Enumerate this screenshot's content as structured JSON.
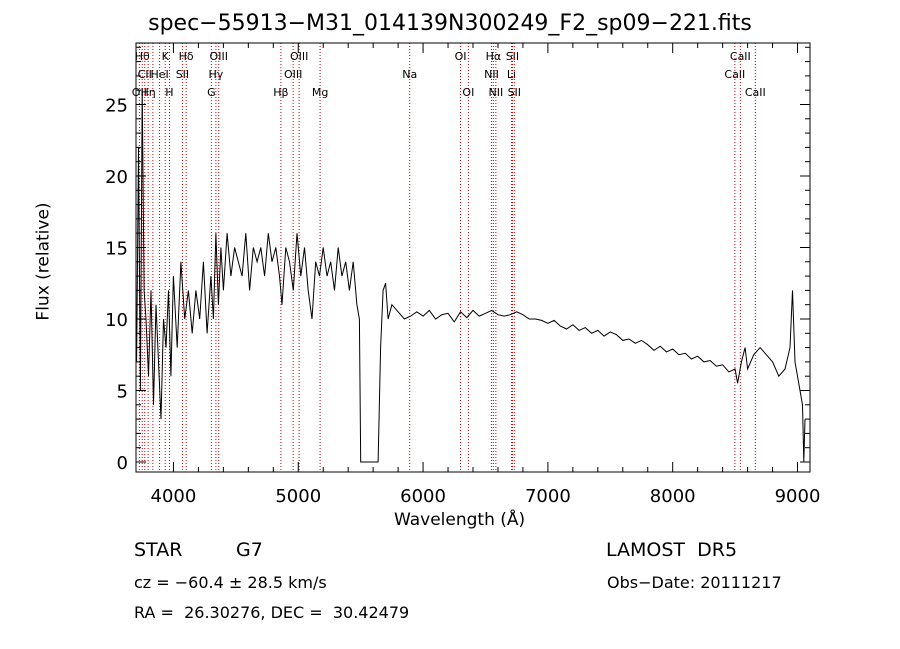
{
  "chart_data": {
    "type": "line",
    "title": "spec−55913−M31_014139N300249_F2_sp09−221.fits",
    "xlabel": "Wavelength (Å)",
    "ylabel": "Flux (relative)",
    "xlim": [
      3700,
      9100
    ],
    "ylim": [
      -0.7,
      29.3
    ],
    "xticks": [
      4000,
      5000,
      6000,
      7000,
      8000,
      9000
    ],
    "yticks": [
      0,
      5,
      10,
      15,
      20,
      25
    ],
    "grid": false,
    "line_color": "#000000",
    "marker_color": "#cc0000",
    "series": [
      {
        "x": [
          3705,
          3720,
          3735,
          3750,
          3765,
          3780,
          3800,
          3820,
          3840,
          3860,
          3880,
          3900,
          3920,
          3940,
          3960,
          3980,
          4000,
          4030,
          4060,
          4090,
          4120,
          4150,
          4180,
          4210,
          4240,
          4270,
          4300,
          4320,
          4340,
          4360,
          4380,
          4400,
          4430,
          4460,
          4490,
          4520,
          4550,
          4580,
          4610,
          4640,
          4670,
          4700,
          4730,
          4760,
          4790,
          4820,
          4850,
          4870,
          4900,
          4930,
          4960,
          4990,
          5020,
          5050,
          5080,
          5110,
          5140,
          5170,
          5200,
          5230,
          5260,
          5290,
          5320,
          5350,
          5380,
          5410,
          5440,
          5470,
          5490,
          5500,
          5520,
          5560,
          5600,
          5640,
          5660,
          5680,
          5700,
          5720,
          5750,
          5800,
          5850,
          5900,
          5950,
          6000,
          6050,
          6100,
          6150,
          6200,
          6250,
          6300,
          6350,
          6400,
          6450,
          6500,
          6550,
          6600,
          6650,
          6700,
          6750,
          6800,
          6850,
          6900,
          6950,
          7000,
          7050,
          7100,
          7150,
          7200,
          7250,
          7300,
          7350,
          7400,
          7450,
          7500,
          7550,
          7600,
          7650,
          7700,
          7750,
          7800,
          7850,
          7900,
          7950,
          8000,
          8050,
          8100,
          8150,
          8200,
          8250,
          8300,
          8350,
          8400,
          8450,
          8500,
          8520,
          8550,
          8580,
          8600,
          8650,
          8700,
          8750,
          8800,
          8850,
          8900,
          8940,
          8960,
          8980,
          9000,
          9020,
          9040,
          9050,
          9060
        ],
        "y": [
          7,
          22,
          5,
          26,
          12,
          10,
          6,
          12,
          4,
          11,
          7,
          3,
          10,
          8,
          12,
          6,
          13,
          8,
          14,
          10,
          12,
          9,
          12,
          10,
          14,
          9,
          13,
          10,
          16,
          11,
          15,
          12,
          16,
          13,
          15,
          14,
          13,
          16,
          12,
          15,
          14,
          15,
          13,
          16,
          14,
          15,
          13,
          11,
          15,
          14,
          12,
          16,
          13,
          15,
          12,
          10,
          14,
          13,
          15,
          13,
          14,
          12,
          15,
          13,
          14,
          12,
          14,
          11,
          10,
          0,
          0,
          0,
          0,
          0,
          8,
          12,
          12.5,
          10,
          11,
          10.5,
          10,
          10.2,
          10.5,
          10.2,
          10.6,
          10,
          10.3,
          10.4,
          9.8,
          10.5,
          10.1,
          10.6,
          10.2,
          10.4,
          10.6,
          10.3,
          10.2,
          10.3,
          10.5,
          10.3,
          10,
          10,
          9.9,
          9.7,
          9.9,
          9.5,
          9.3,
          9.6,
          9.2,
          9.4,
          9,
          9.2,
          8.8,
          9.1,
          8.9,
          8.5,
          8.6,
          8.3,
          8.5,
          8.2,
          7.8,
          8.1,
          7.7,
          7.9,
          7.5,
          7.6,
          7.2,
          7.4,
          7,
          7.1,
          6.7,
          6.8,
          6.3,
          6.5,
          5.5,
          7,
          8,
          6.5,
          7.5,
          8,
          7.5,
          7,
          6,
          6.5,
          8,
          12,
          7,
          6,
          5,
          4,
          0,
          3
        ]
      }
    ],
    "line_markers": [
      {
        "wavelength": 3727,
        "label": "OII",
        "row": 2
      },
      {
        "wavelength": 3750,
        "label": "Hθ",
        "row": 0
      },
      {
        "wavelength": 3770,
        "label": "CII",
        "row": 1
      },
      {
        "wavelength": 3797,
        "label": "Hη",
        "row": 2
      },
      {
        "wavelength": 3835,
        "label": "",
        "row": 0
      },
      {
        "wavelength": 3889,
        "label": "HeI",
        "row": 1
      },
      {
        "wavelength": 3934,
        "label": "K",
        "row": 0
      },
      {
        "wavelength": 3968,
        "label": "H",
        "row": 2
      },
      {
        "wavelength": 4072,
        "label": "SII",
        "row": 1
      },
      {
        "wavelength": 4102,
        "label": "Hδ",
        "row": 0
      },
      {
        "wavelength": 4304,
        "label": "G",
        "row": 2
      },
      {
        "wavelength": 4340,
        "label": "Hγ",
        "row": 1
      },
      {
        "wavelength": 4363,
        "label": "OIII",
        "row": 0
      },
      {
        "wavelength": 4861,
        "label": "Hβ",
        "row": 2
      },
      {
        "wavelength": 4959,
        "label": "OIII",
        "row": 1
      },
      {
        "wavelength": 5007,
        "label": "OIII",
        "row": 0
      },
      {
        "wavelength": 5175,
        "label": "Mg",
        "row": 2
      },
      {
        "wavelength": 5893,
        "label": "Na",
        "row": 1
      },
      {
        "wavelength": 6300,
        "label": "OI",
        "row": 0
      },
      {
        "wavelength": 6363,
        "label": "OI",
        "row": 2
      },
      {
        "wavelength": 6548,
        "label": "NII",
        "row": 1
      },
      {
        "wavelength": 6563,
        "label": "Hα",
        "row": 0
      },
      {
        "wavelength": 6583,
        "label": "NII",
        "row": 2
      },
      {
        "wavelength": 6708,
        "label": "Li",
        "row": 1
      },
      {
        "wavelength": 6716,
        "label": "SII",
        "row": 0
      },
      {
        "wavelength": 6731,
        "label": "SII",
        "row": 2
      },
      {
        "wavelength": 8498,
        "label": "CaII",
        "row": 1
      },
      {
        "wavelength": 8542,
        "label": "CaII",
        "row": 0
      },
      {
        "wavelength": 8662,
        "label": "CaII",
        "row": 2
      }
    ]
  },
  "info": {
    "object_class": "STAR",
    "subclass": "G7",
    "survey": "LAMOST  DR5",
    "cz_text": "cz = −60.4 ± 28.5 km/s",
    "obs_date_text": "Obs−Date: 20111217",
    "radec_text": "RA =  26.30276, DEC =  30.42479"
  }
}
